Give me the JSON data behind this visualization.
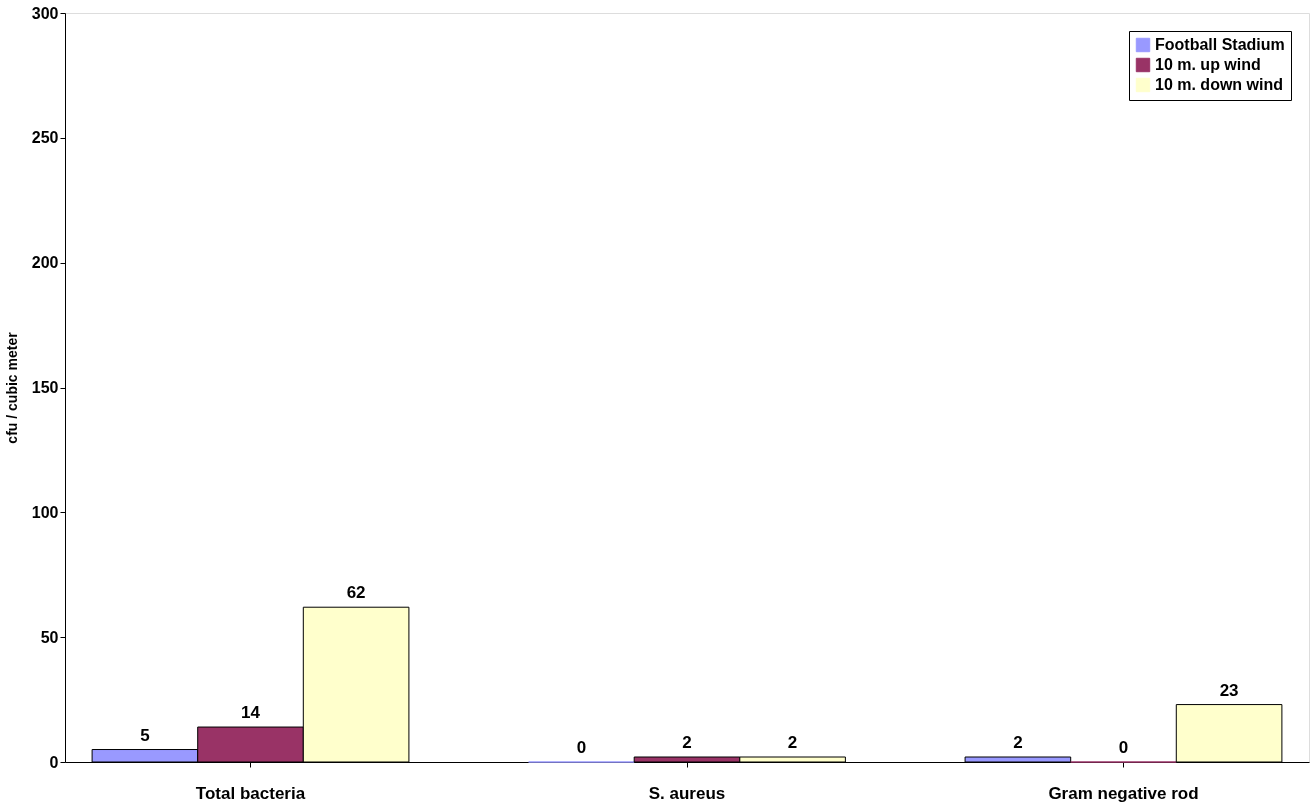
{
  "chart_data": {
    "type": "bar",
    "ylabel": "cfu / cubic meter",
    "categories": [
      "Total bacteria",
      "S. aureus",
      "Gram negative rod"
    ],
    "series": [
      {
        "name": "Football Stadium",
        "color": "#9999ff",
        "values": [
          5,
          0,
          2
        ]
      },
      {
        "name": "10 m. up wind",
        "color": "#993366",
        "values": [
          14,
          2,
          0
        ]
      },
      {
        "name": "10 m. down wind",
        "color": "#ffffcc",
        "values": [
          62,
          2,
          23
        ]
      }
    ],
    "ylim": [
      0,
      300
    ],
    "yticks": [
      0,
      50,
      100,
      150,
      200,
      250,
      300
    ],
    "grid": false,
    "legend": "top right",
    "data_labels": true
  }
}
